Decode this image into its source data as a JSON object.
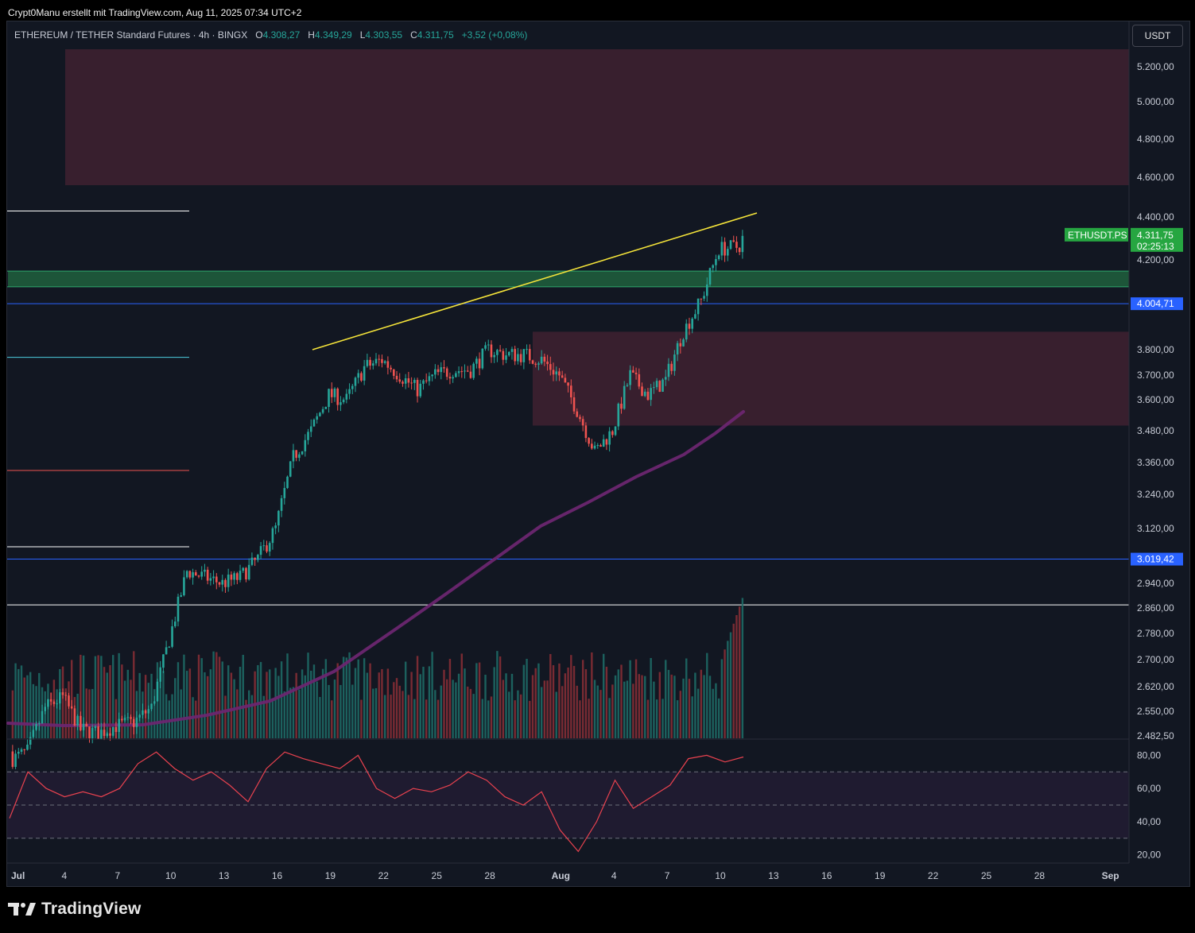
{
  "header": {
    "text": "Crypt0Manu erstellt mit TradingView.com, Aug 11, 2025 07:34 UTC+2"
  },
  "legend": {
    "symbol": "ETHEREUM / TETHER Standard Futures · 4h · BINGX",
    "o_label": "O",
    "o": "4.308,27",
    "h_label": "H",
    "h": "4.349,29",
    "l_label": "L",
    "l": "4.303,55",
    "c_label": "C",
    "c": "4.311,75",
    "change": "+3,52 (+0,08%)"
  },
  "currency": "USDT",
  "brand": "TradingView",
  "colors": {
    "background": "#121722",
    "up": "#26a69a",
    "down": "#ef5350",
    "supply_zone": "#3f2130",
    "demand_zone": "#1f5c3c",
    "trendline": "#f5e43a",
    "moving_average": "#6b2670",
    "rsi_line": "#e9424f",
    "level_blue": "#2962ff",
    "price_badge": "#26a641"
  },
  "chart_data": {
    "type": "candlestick",
    "symbol": "ETHUSDT.PS",
    "timeframe": "4h",
    "price_axis": {
      "ticks": [
        "5.200,00",
        "5.000,00",
        "4.800,00",
        "4.600,00",
        "4.400,00",
        "4.200,00",
        "3.800,00",
        "3.700,00",
        "3.600,00",
        "3.480,00",
        "3.360,00",
        "3.240,00",
        "3.120,00",
        "2.940,00",
        "2.860,00",
        "2.780,00",
        "2.700,00",
        "2.620,00",
        "2.550,00",
        "2.482,50"
      ],
      "tick_values": [
        5200,
        5000,
        4800,
        4600,
        4400,
        4200,
        3800,
        3700,
        3600,
        3480,
        3360,
        3240,
        3120,
        2940,
        2860,
        2780,
        2700,
        2620,
        2550,
        2482.5
      ],
      "scale": "log"
    },
    "time_axis": {
      "labels": [
        "Jul",
        "4",
        "7",
        "10",
        "13",
        "16",
        "19",
        "22",
        "25",
        "28",
        "Aug",
        "4",
        "7",
        "10",
        "13",
        "16",
        "19",
        "22",
        "25",
        "28",
        "Sep"
      ],
      "dates": [
        "2025-07-01",
        "2025-07-04",
        "2025-07-07",
        "2025-07-10",
        "2025-07-13",
        "2025-07-16",
        "2025-07-19",
        "2025-07-22",
        "2025-07-25",
        "2025-07-28",
        "2025-08-01",
        "2025-08-04",
        "2025-08-07",
        "2025-08-10",
        "2025-08-13",
        "2025-08-16",
        "2025-08-19",
        "2025-08-22",
        "2025-08-25",
        "2025-08-28",
        "2025-09-01"
      ]
    },
    "candles_daily_close": [
      {
        "date": "2025-07-01",
        "close": 2440
      },
      {
        "date": "2025-07-02",
        "close": 2560
      },
      {
        "date": "2025-07-03",
        "close": 2590
      },
      {
        "date": "2025-07-04",
        "close": 2500
      },
      {
        "date": "2025-07-05",
        "close": 2490
      },
      {
        "date": "2025-07-06",
        "close": 2510
      },
      {
        "date": "2025-07-07",
        "close": 2520
      },
      {
        "date": "2025-07-08",
        "close": 2560
      },
      {
        "date": "2025-07-09",
        "close": 2760
      },
      {
        "date": "2025-07-10",
        "close": 2980
      },
      {
        "date": "2025-07-11",
        "close": 2960
      },
      {
        "date": "2025-07-12",
        "close": 2940
      },
      {
        "date": "2025-07-13",
        "close": 2960
      },
      {
        "date": "2025-07-14",
        "close": 3020
      },
      {
        "date": "2025-07-15",
        "close": 3120
      },
      {
        "date": "2025-07-16",
        "close": 3380
      },
      {
        "date": "2025-07-17",
        "close": 3480
      },
      {
        "date": "2025-07-18",
        "close": 3620
      },
      {
        "date": "2025-07-19",
        "close": 3600
      },
      {
        "date": "2025-07-20",
        "close": 3730
      },
      {
        "date": "2025-07-21",
        "close": 3760
      },
      {
        "date": "2025-07-22",
        "close": 3700
      },
      {
        "date": "2025-07-23",
        "close": 3640
      },
      {
        "date": "2025-07-24",
        "close": 3700
      },
      {
        "date": "2025-07-25",
        "close": 3720
      },
      {
        "date": "2025-07-26",
        "close": 3720
      },
      {
        "date": "2025-07-27",
        "close": 3800
      },
      {
        "date": "2025-07-28",
        "close": 3780
      },
      {
        "date": "2025-07-29",
        "close": 3780
      },
      {
        "date": "2025-07-30",
        "close": 3760
      },
      {
        "date": "2025-07-31",
        "close": 3700
      },
      {
        "date": "2025-08-01",
        "close": 3560
      },
      {
        "date": "2025-08-02",
        "close": 3400
      },
      {
        "date": "2025-08-03",
        "close": 3480
      },
      {
        "date": "2025-08-04",
        "close": 3700
      },
      {
        "date": "2025-08-05",
        "close": 3620
      },
      {
        "date": "2025-08-06",
        "close": 3680
      },
      {
        "date": "2025-08-07",
        "close": 3880
      },
      {
        "date": "2025-08-08",
        "close": 4020
      },
      {
        "date": "2025-08-09",
        "close": 4250
      },
      {
        "date": "2025-08-10",
        "close": 4260
      },
      {
        "date": "2025-08-11",
        "close": 4311.75
      }
    ],
    "zones": [
      {
        "kind": "supply",
        "top": 5300,
        "bottom": 4560
      },
      {
        "kind": "demand",
        "top": 4150,
        "bottom": 4080
      },
      {
        "kind": "supply",
        "top": 3880,
        "bottom": 3500
      }
    ],
    "levels": [
      {
        "price": 4004.71,
        "label": "4.004,71",
        "color": "#2962ff"
      },
      {
        "price": 3019.42,
        "label": "3.019,42",
        "color": "#2962ff"
      },
      {
        "price": 2870,
        "color": "#ffffff"
      }
    ],
    "last_price": {
      "symbol": "ETHUSDT.PS",
      "price": "4.311,75",
      "countdown": "02:25:13"
    },
    "rsi": {
      "ticks": [
        "80,00",
        "60,00",
        "40,00",
        "20,00"
      ],
      "tick_values": [
        80,
        60,
        40,
        20
      ],
      "bands": [
        70,
        50,
        30
      ],
      "series": [
        42,
        70,
        60,
        55,
        58,
        55,
        60,
        75,
        82,
        72,
        65,
        70,
        62,
        52,
        72,
        82,
        78,
        75,
        72,
        80,
        60,
        54,
        60,
        58,
        62,
        70,
        65,
        55,
        50,
        58,
        35,
        22,
        40,
        65,
        48,
        55,
        62,
        78,
        80,
        76,
        79
      ]
    },
    "volume_scale_note": ""
  }
}
